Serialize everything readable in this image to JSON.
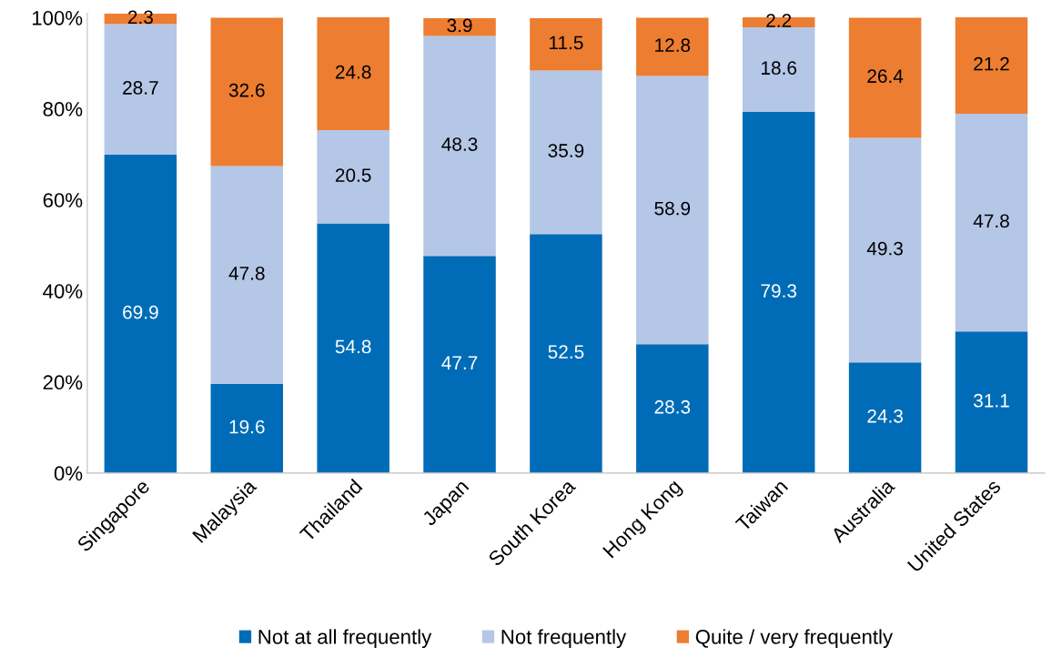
{
  "chart_data": {
    "type": "bar",
    "stacked": true,
    "categories": [
      "Singapore",
      "Malaysia",
      "Thailand",
      "Japan",
      "South Korea",
      "Hong Kong",
      "Taiwan",
      "Australia",
      "United States"
    ],
    "series": [
      {
        "name": "Not at all frequently",
        "color": "#006cb7",
        "values": [
          69.9,
          19.6,
          54.8,
          47.7,
          52.5,
          28.3,
          79.3,
          24.3,
          31.1
        ]
      },
      {
        "name": "Not frequently",
        "color": "#b4c7e7",
        "values": [
          28.7,
          47.8,
          20.5,
          48.3,
          35.9,
          58.9,
          18.6,
          49.3,
          47.8
        ]
      },
      {
        "name": "Quite / very frequently",
        "color": "#ed7d31",
        "values": [
          2.3,
          32.6,
          24.8,
          3.9,
          11.5,
          12.8,
          2.2,
          26.4,
          21.2
        ]
      }
    ],
    "ylim": [
      0,
      101
    ],
    "yticks": [
      {
        "value": 0,
        "label": "0%"
      },
      {
        "value": 20,
        "label": "20%"
      },
      {
        "value": 40,
        "label": "40%"
      },
      {
        "value": 60,
        "label": "60%"
      },
      {
        "value": 80,
        "label": "80%"
      },
      {
        "value": 100,
        "label": "100%"
      }
    ],
    "data_labels": true,
    "legend": "bottom",
    "grid": false
  }
}
